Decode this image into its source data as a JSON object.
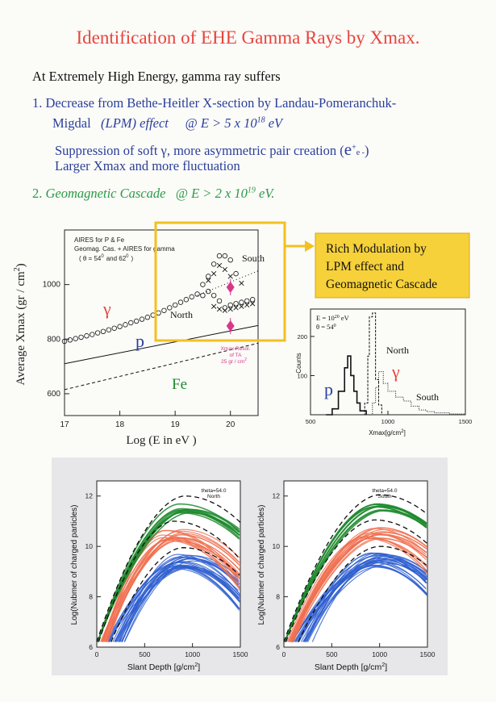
{
  "title": "Identification of EHE Gamma Rays by Xmax.",
  "intro": "At Extremely High Energy,  gamma ray suffers",
  "item1": {
    "line1": "1.  Decrease from Bethe-Heitler X-section by Landau-Pomeranchuk-",
    "line2_a": "Migdal",
    "line2_b": "(LPM) effect",
    "line2_c": "@ E > 5 x 10",
    "line2_exp": "18",
    "line2_d": " eV",
    "line3_a": "Suppression of soft γ,  more asymmetric pair creation (",
    "line3_e": "e",
    "line3_plus": "+",
    "line3_minus": "e -",
    "line3_close": ")",
    "line4": "Larger Xmax and more fluctuation"
  },
  "item2": {
    "a": "2.  ",
    "b": "Geomagnetic Cascade",
    "c": "@  E > 2 x 10",
    "exp": "19",
    "d": " eV."
  },
  "callout": {
    "line1": "Rich Modulation by",
    "line2": "LPM effect and",
    "line3": "Geomagnetic Cascade"
  },
  "colors": {
    "title": "#e8453c",
    "text_blue": "#2a3f9a",
    "text_green": "#2a9a46",
    "callout_bg": "#f6d13a",
    "callout_border": "#f2c020",
    "gamma_red": "#e8453c",
    "marker_pink": "#d8388a",
    "curve_green": "#1f8a2e",
    "curve_orange": "#f07050",
    "curve_blue": "#2f5fd0"
  },
  "chart_data": [
    {
      "type": "scatter",
      "ylabel": "Average Xmax (gr / cm",
      "ylabel_sup": "2",
      "ylabel_close": ")",
      "xlabel": "Log (E in eV )",
      "xlim": [
        17,
        20.5
      ],
      "ylim": [
        520,
        1200
      ],
      "xticks": [
        "17",
        "18",
        "19",
        "20"
      ],
      "yticks": [
        "600",
        "800",
        "1000"
      ],
      "legend_lines": [
        "AIRES for P & Fe",
        "Geomag. Cas. + AIRES for gamma",
        "( θ = 54",
        "0",
        "and  62",
        "0",
        ")"
      ],
      "labels": {
        "gamma": "γ",
        "p": "p",
        "fe": "Fe",
        "north": "North",
        "south": "South"
      },
      "annotation": [
        "Xmax Resol.",
        "of  TA",
        "25 gr / cm",
        "2"
      ],
      "gamma_points": [
        [
          17.0,
          792
        ],
        [
          17.1,
          797
        ],
        [
          17.2,
          802
        ],
        [
          17.3,
          807
        ],
        [
          17.4,
          812
        ],
        [
          17.5,
          817
        ],
        [
          17.6,
          823
        ],
        [
          17.7,
          828
        ],
        [
          17.8,
          834
        ],
        [
          17.9,
          840
        ],
        [
          18.0,
          846
        ],
        [
          18.1,
          853
        ],
        [
          18.2,
          860
        ],
        [
          18.3,
          866
        ],
        [
          18.4,
          873
        ],
        [
          18.5,
          880
        ],
        [
          18.6,
          888
        ],
        [
          18.7,
          896
        ],
        [
          18.8,
          905
        ],
        [
          18.9,
          915
        ],
        [
          19.0,
          925
        ],
        [
          19.1,
          935
        ],
        [
          19.2,
          945
        ],
        [
          19.3,
          955
        ],
        [
          19.4,
          965
        ]
      ],
      "south_circles": [
        [
          19.5,
          1000
        ],
        [
          19.6,
          1030
        ],
        [
          19.7,
          1075
        ],
        [
          19.8,
          1105
        ],
        [
          19.9,
          1105
        ],
        [
          20.0,
          1090
        ],
        [
          20.1,
          1040
        ]
      ],
      "south_crosses": [
        [
          19.6,
          1015
        ],
        [
          19.7,
          1040
        ],
        [
          19.8,
          1070
        ],
        [
          19.9,
          1055
        ],
        [
          20.0,
          1030
        ],
        [
          20.2,
          1005
        ]
      ],
      "north_circles": [
        [
          19.5,
          960
        ],
        [
          19.6,
          975
        ],
        [
          19.7,
          960
        ],
        [
          19.8,
          940
        ],
        [
          19.9,
          915
        ],
        [
          20.0,
          925
        ],
        [
          20.1,
          930
        ],
        [
          20.2,
          935
        ],
        [
          20.3,
          940
        ],
        [
          20.4,
          945
        ]
      ],
      "north_crosses": [
        [
          19.7,
          920
        ],
        [
          19.8,
          910
        ],
        [
          19.9,
          905
        ],
        [
          20.0,
          910
        ],
        [
          20.1,
          915
        ],
        [
          20.2,
          920
        ],
        [
          20.3,
          925
        ],
        [
          20.4,
          930
        ]
      ],
      "pink_markers": [
        [
          20.0,
          990
        ],
        [
          20.0,
          848
        ]
      ],
      "proton_line": [
        [
          17.0,
          710
        ],
        [
          20.5,
          850
        ]
      ],
      "iron_line": [
        [
          17.0,
          615
        ],
        [
          20.5,
          785
        ]
      ],
      "gamma_dotted": [
        [
          19.4,
          960
        ],
        [
          20.5,
          1050
        ]
      ]
    },
    {
      "type": "histogram",
      "title_lines": [
        "E = 10",
        "20",
        " eV",
        "θ = 54",
        "0"
      ],
      "xlabel": "Xmax[g/cm",
      "xlabel_sup": "2",
      "xlabel_close": "]",
      "ylabel": "Counts",
      "xlim": [
        500,
        1500
      ],
      "ylim": [
        0,
        270
      ],
      "xticks": [
        "500",
        "1000",
        "1500"
      ],
      "yticks": [
        "100",
        "200"
      ],
      "labels": {
        "p": "p",
        "gamma": "γ",
        "north": "North",
        "south": "South"
      },
      "proton": [
        [
          600,
          0
        ],
        [
          640,
          15
        ],
        [
          680,
          60
        ],
        [
          720,
          120
        ],
        [
          740,
          150
        ],
        [
          760,
          100
        ],
        [
          780,
          60
        ],
        [
          800,
          30
        ],
        [
          820,
          10
        ],
        [
          860,
          0
        ]
      ],
      "north": [
        [
          820,
          0
        ],
        [
          850,
          30
        ],
        [
          870,
          150
        ],
        [
          880,
          250
        ],
        [
          900,
          260
        ],
        [
          920,
          90
        ],
        [
          940,
          25
        ],
        [
          960,
          0
        ]
      ],
      "south": [
        [
          880,
          0
        ],
        [
          900,
          30
        ],
        [
          920,
          70
        ],
        [
          940,
          110
        ],
        [
          970,
          80
        ],
        [
          1000,
          60
        ],
        [
          1050,
          45
        ],
        [
          1100,
          35
        ],
        [
          1150,
          22
        ],
        [
          1200,
          12
        ],
        [
          1250,
          8
        ],
        [
          1300,
          5
        ],
        [
          1400,
          2
        ],
        [
          1500,
          0
        ]
      ]
    },
    {
      "type": "line",
      "tag": "theta=54.0",
      "tag2": "North",
      "xlabel": "Slant Depth [g/cm",
      "xlabel_sup": "2",
      "xlabel_close": "]",
      "ylabel": "Log(Nubmer of charged particles)",
      "xlim": [
        0,
        1500
      ],
      "ylim": [
        6,
        12.6
      ],
      "xticks": [
        "0",
        "500",
        "1000",
        "1500"
      ],
      "yticks": [
        "6",
        "8",
        "10",
        "12"
      ],
      "green_peak": 11.8,
      "green_xmax": 920,
      "orange_peak": 10.9,
      "orange_xmax": 800,
      "blue_peak": 9.9,
      "blue_xmax": 900
    },
    {
      "type": "line",
      "tag": "theta=54.0",
      "tag2": "South",
      "xlabel": "Slant Depth [g/cm",
      "xlabel_sup": "2",
      "xlabel_close": "]",
      "ylabel": "Log(Nubmer of charged particles)",
      "xlim": [
        0,
        1500
      ],
      "ylim": [
        6,
        12.6
      ],
      "xticks": [
        "0",
        "500",
        "1000",
        "1500"
      ],
      "yticks": [
        "6",
        "8",
        "10",
        "12"
      ],
      "green_peak": 11.85,
      "green_xmax": 1000,
      "orange_peak": 10.95,
      "orange_xmax": 950,
      "blue_peak": 9.95,
      "blue_xmax": 1000
    }
  ]
}
